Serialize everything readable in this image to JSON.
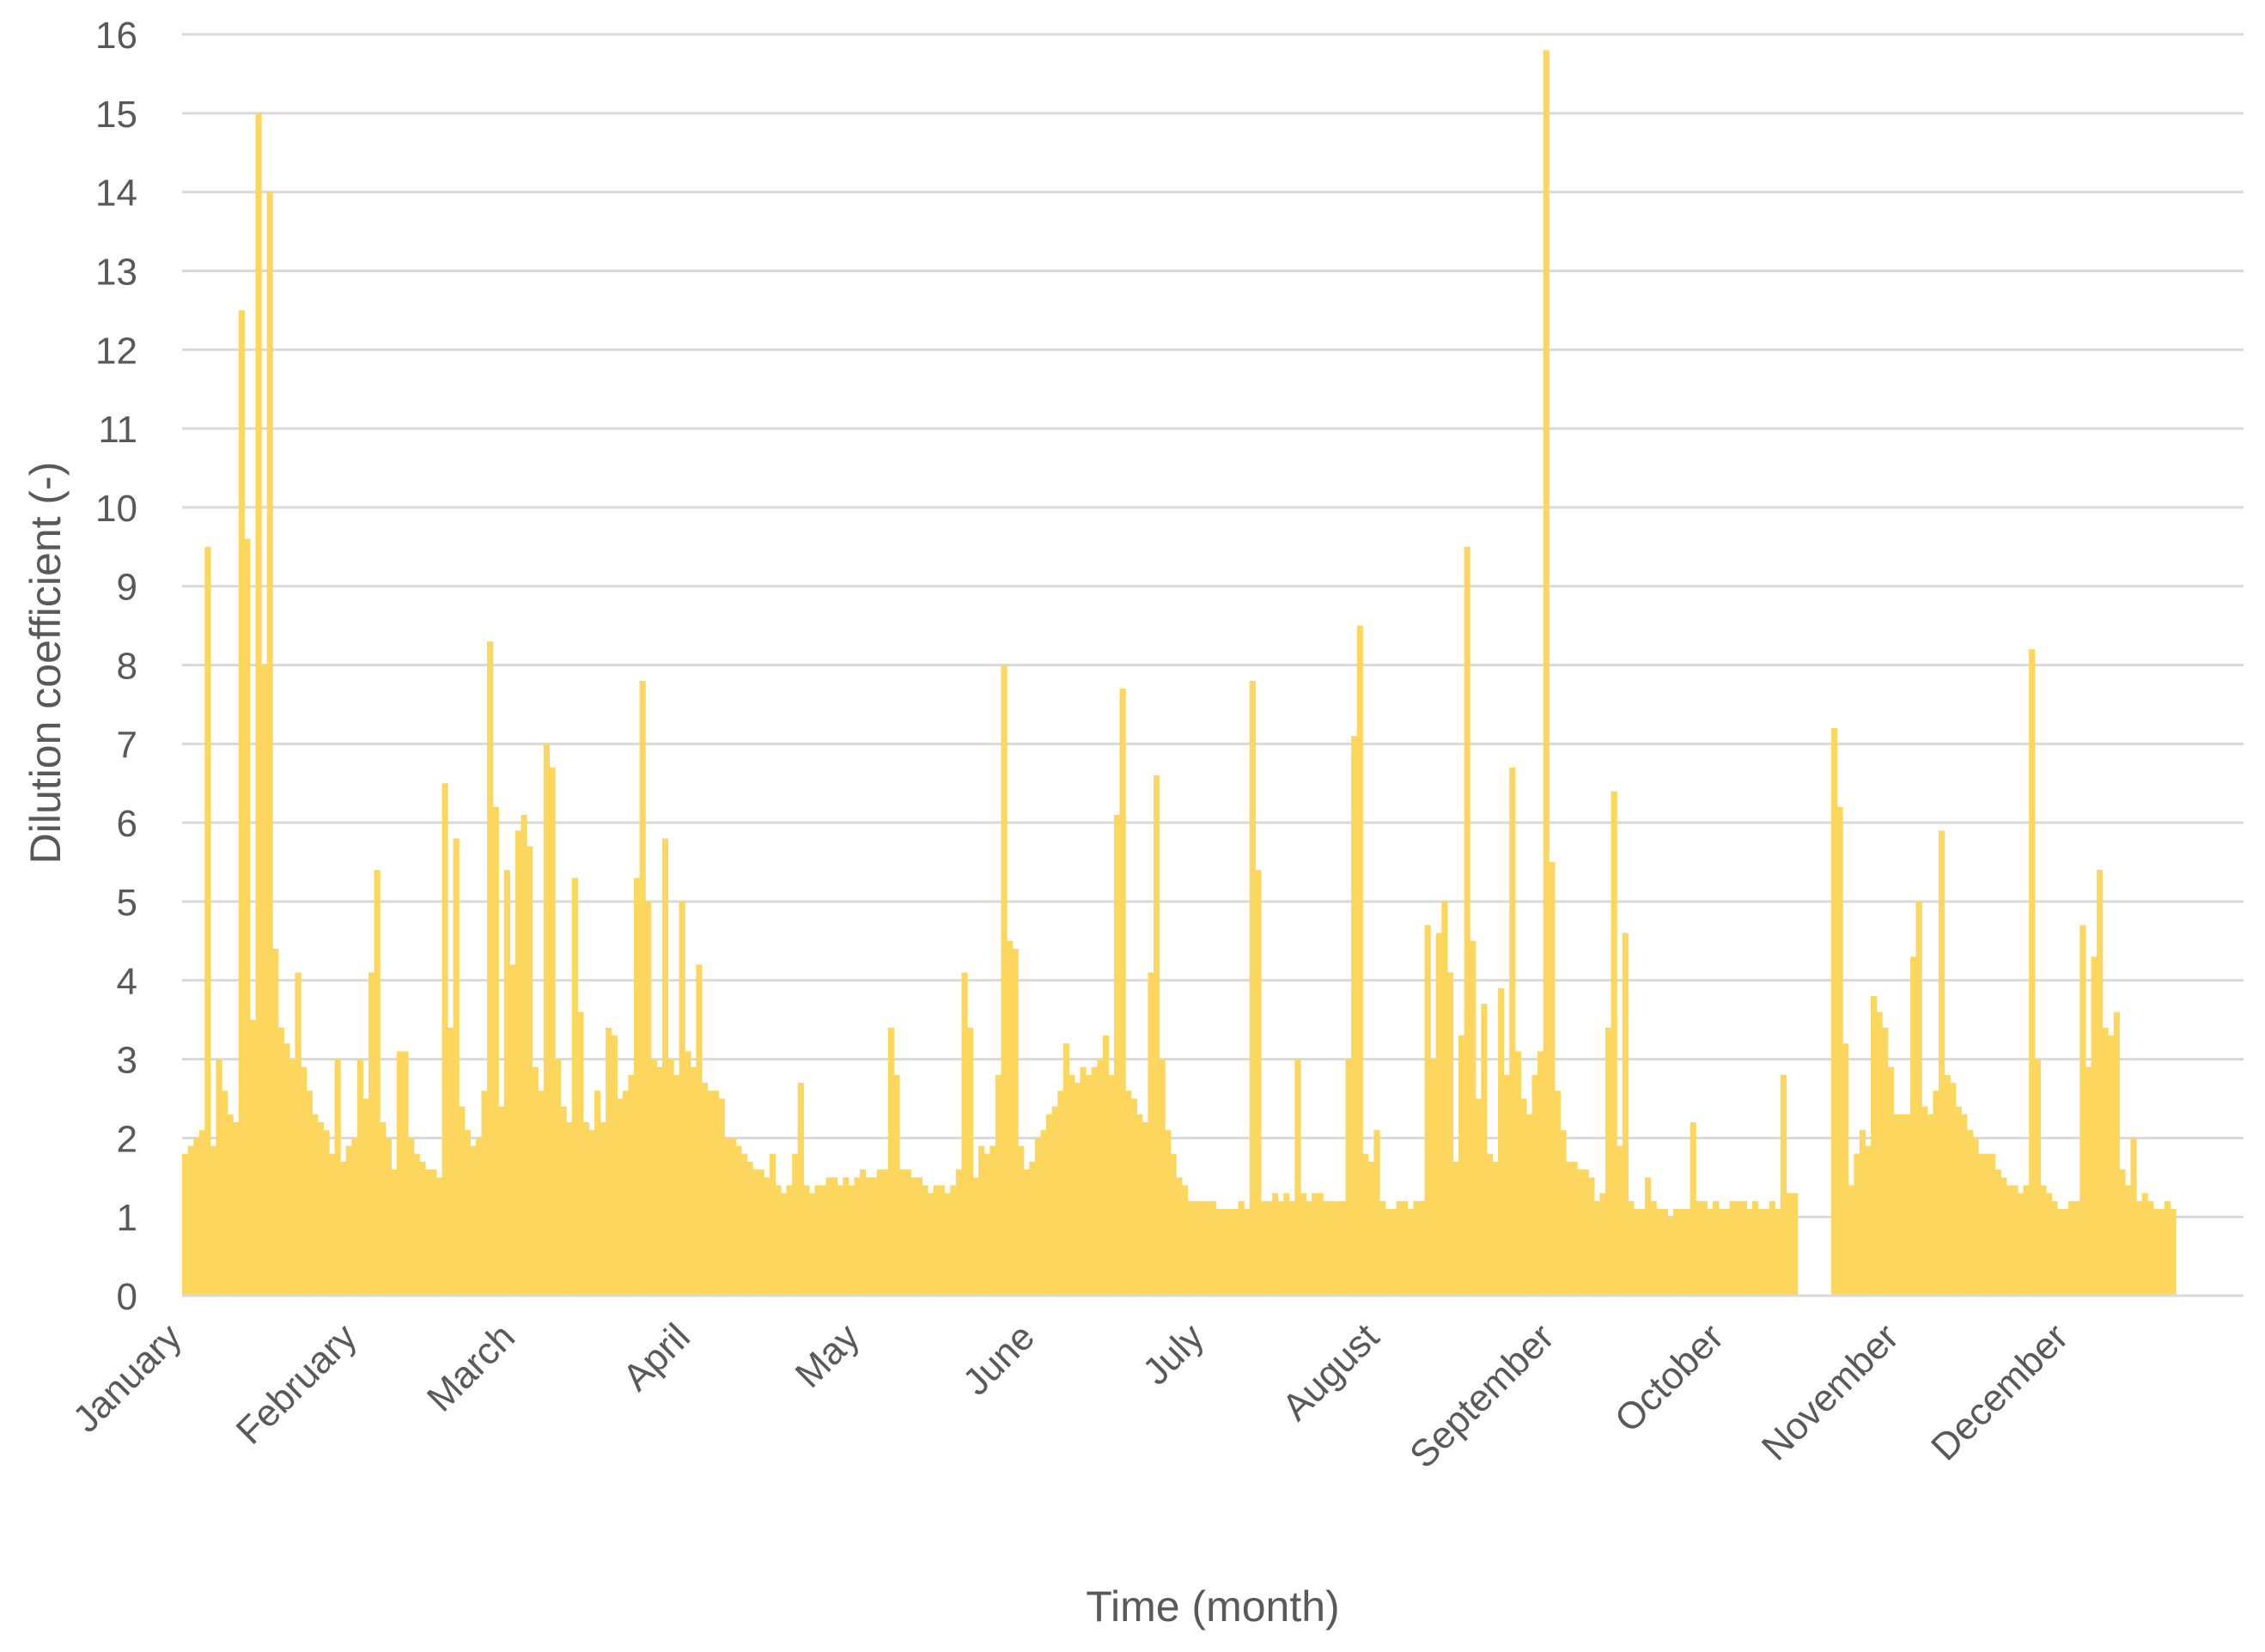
{
  "chart_data": {
    "type": "bar",
    "title": "",
    "xlabel": "Time (month)",
    "ylabel": "Dilution coefficient (-)",
    "ylim": [
      0,
      16
    ],
    "yticks": [
      0,
      1,
      2,
      3,
      4,
      5,
      6,
      7,
      8,
      9,
      10,
      11,
      12,
      13,
      14,
      15,
      16
    ],
    "grid": "horizontal",
    "legend": "none",
    "bar_color": "#FDD65E",
    "grid_color": "#D9D9D9",
    "x_unit": "day of year",
    "x_range": [
      1,
      365
    ],
    "month_ticks": [
      {
        "label": "January",
        "day": 1
      },
      {
        "label": "February",
        "day": 32
      },
      {
        "label": "March",
        "day": 60
      },
      {
        "label": "April",
        "day": 91
      },
      {
        "label": "May",
        "day": 121
      },
      {
        "label": "June",
        "day": 152
      },
      {
        "label": "July",
        "day": 182
      },
      {
        "label": "August",
        "day": 213
      },
      {
        "label": "September",
        "day": 244
      },
      {
        "label": "October",
        "day": 274
      },
      {
        "label": "November",
        "day": 305
      },
      {
        "label": "December",
        "day": 335
      }
    ],
    "values": [
      1.8,
      1.9,
      2.0,
      2.1,
      9.5,
      1.9,
      3.0,
      2.6,
      2.3,
      2.2,
      12.5,
      9.6,
      3.5,
      15.0,
      8.0,
      14.0,
      4.4,
      3.4,
      3.2,
      3.0,
      4.1,
      2.9,
      2.6,
      2.3,
      2.2,
      2.1,
      1.8,
      3.0,
      1.7,
      1.9,
      2.0,
      3.0,
      2.5,
      4.1,
      5.4,
      2.2,
      2.0,
      1.6,
      3.1,
      3.1,
      2.0,
      1.8,
      1.7,
      1.6,
      1.6,
      1.5,
      6.5,
      3.4,
      5.8,
      2.4,
      2.1,
      1.9,
      2.0,
      2.6,
      8.3,
      6.2,
      2.4,
      5.4,
      4.2,
      5.9,
      6.1,
      5.7,
      2.9,
      2.6,
      7.0,
      6.7,
      3.0,
      2.4,
      2.2,
      5.3,
      3.6,
      2.2,
      2.1,
      2.6,
      2.2,
      3.4,
      3.3,
      2.5,
      2.6,
      2.8,
      5.3,
      7.8,
      5.0,
      3.0,
      2.9,
      5.8,
      3.0,
      2.8,
      5.0,
      3.1,
      2.9,
      4.2,
      2.7,
      2.6,
      2.6,
      2.5,
      2.0,
      2.0,
      1.9,
      1.8,
      1.7,
      1.6,
      1.6,
      1.5,
      1.8,
      1.4,
      1.3,
      1.4,
      1.8,
      2.7,
      1.4,
      1.3,
      1.4,
      1.4,
      1.5,
      1.5,
      1.4,
      1.5,
      1.4,
      1.5,
      1.6,
      1.5,
      1.5,
      1.6,
      1.6,
      3.4,
      2.8,
      1.6,
      1.6,
      1.5,
      1.5,
      1.4,
      1.3,
      1.4,
      1.4,
      1.3,
      1.4,
      1.6,
      4.1,
      3.4,
      1.5,
      1.9,
      1.8,
      1.9,
      2.8,
      8.0,
      4.5,
      4.4,
      1.9,
      1.6,
      1.7,
      2.0,
      2.1,
      2.3,
      2.4,
      2.6,
      3.2,
      2.8,
      2.7,
      2.9,
      2.8,
      2.9,
      3.0,
      3.3,
      2.8,
      6.1,
      7.7,
      2.6,
      2.5,
      2.3,
      2.2,
      4.1,
      6.6,
      3.0,
      2.1,
      1.8,
      1.5,
      1.4,
      1.2,
      1.2,
      1.2,
      1.2,
      1.2,
      1.1,
      1.1,
      1.1,
      1.1,
      1.2,
      1.1,
      7.8,
      5.4,
      1.2,
      1.2,
      1.3,
      1.2,
      1.3,
      1.2,
      3.0,
      1.3,
      1.2,
      1.3,
      1.3,
      1.2,
      1.2,
      1.2,
      1.2,
      3.0,
      7.1,
      8.5,
      1.8,
      1.7,
      2.1,
      1.2,
      1.1,
      1.1,
      1.2,
      1.2,
      1.1,
      1.2,
      1.2,
      4.7,
      3.0,
      4.6,
      5.0,
      4.1,
      1.7,
      3.3,
      9.5,
      4.5,
      2.5,
      3.7,
      1.8,
      1.7,
      3.9,
      2.8,
      6.7,
      3.1,
      2.5,
      2.3,
      2.8,
      3.1,
      15.8,
      5.5,
      2.6,
      2.1,
      1.7,
      1.7,
      1.6,
      1.6,
      1.5,
      1.2,
      1.3,
      3.4,
      6.4,
      1.9,
      4.6,
      1.2,
      1.1,
      1.1,
      1.5,
      1.2,
      1.1,
      1.1,
      1.0,
      1.1,
      1.1,
      1.1,
      2.2,
      1.2,
      1.2,
      1.1,
      1.2,
      1.1,
      1.1,
      1.2,
      1.2,
      1.2,
      1.1,
      1.2,
      1.1,
      1.1,
      1.2,
      1.1,
      2.8,
      1.3,
      1.3,
      null,
      null,
      null,
      null,
      null,
      null,
      7.2,
      6.2,
      3.2,
      1.4,
      1.8,
      2.1,
      1.9,
      3.8,
      3.6,
      3.4,
      2.9,
      2.3,
      2.3,
      2.3,
      4.3,
      5.0,
      2.4,
      2.3,
      2.6,
      5.9,
      2.8,
      2.7,
      2.4,
      2.3,
      2.1,
      2.0,
      1.8,
      1.8,
      1.8,
      1.6,
      1.5,
      1.4,
      1.4,
      1.3,
      1.4,
      8.2,
      3.0,
      1.4,
      1.3,
      1.2,
      1.1,
      1.1,
      1.2,
      1.2,
      4.7,
      2.9,
      4.3,
      5.4,
      3.4,
      3.3,
      3.6,
      1.6,
      1.4,
      2.0,
      1.2,
      1.3,
      1.2,
      1.1,
      1.1,
      1.2,
      1.1
    ]
  }
}
